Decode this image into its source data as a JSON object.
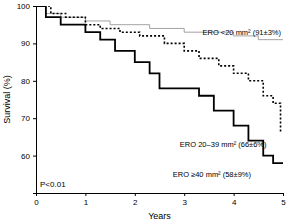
{
  "chart_data": {
    "type": "line",
    "x_label": "Years",
    "y_label": "Survival (%)",
    "annotation": "P<0.01",
    "xlim": [
      0,
      5
    ],
    "xticks": [
      0,
      1,
      2,
      3,
      4,
      5
    ],
    "ylim": [
      50,
      100
    ],
    "yticks": [
      60,
      70,
      80,
      90,
      100
    ],
    "grid": false,
    "series": [
      {
        "name": "ERO <20 mm² (91±3%)",
        "color": "#999999",
        "line_style": "solid",
        "x": [
          0,
          0.2,
          0.5,
          1.0,
          1.5,
          2.3,
          3.0,
          4.0,
          4.5,
          5.0
        ],
        "values": [
          100,
          98,
          97,
          96,
          95,
          94,
          93,
          92,
          91,
          91
        ]
      },
      {
        "name": "ERO 20–39 mm² (66±6%)",
        "color": "#000000",
        "line_style": "dotted",
        "x": [
          0,
          0.3,
          0.6,
          1.0,
          1.3,
          1.7,
          2.1,
          2.6,
          3.0,
          3.3,
          3.7,
          4.0,
          4.3,
          4.6,
          4.8,
          4.95
        ],
        "values": [
          100,
          98,
          97,
          95,
          94,
          93,
          92,
          90,
          88,
          86,
          84,
          82,
          80,
          76,
          74,
          66
        ]
      },
      {
        "name": "ERO ≥40 mm² (58±9%)",
        "color": "#000000",
        "line_style": "solid",
        "x": [
          0,
          0.2,
          0.5,
          1.0,
          1.3,
          1.6,
          2.0,
          2.3,
          2.5,
          3.3,
          3.6,
          4.0,
          4.3,
          4.6,
          4.8,
          5.0
        ],
        "values": [
          100,
          97,
          95,
          93,
          91,
          88,
          85,
          82,
          78,
          76,
          72,
          68,
          64,
          60,
          58,
          58
        ]
      }
    ]
  }
}
